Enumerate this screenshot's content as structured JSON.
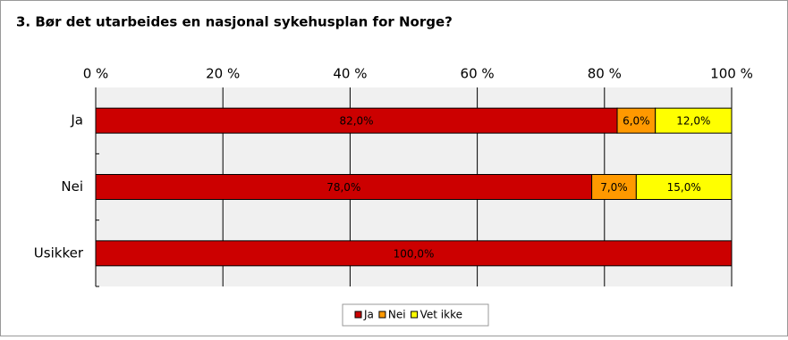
{
  "chart_data": {
    "type": "stacked-bar-horizontal",
    "title": "3. Bør det utarbeides en nasjonal sykehusplan for Norge?",
    "categories": [
      "Ja",
      "Nei",
      "Usikker"
    ],
    "series": [
      {
        "name": "Ja",
        "color": "#cc0000",
        "values": [
          82,
          78,
          100
        ],
        "value_labels": [
          "82,0%",
          "78,0%",
          "100,0%"
        ]
      },
      {
        "name": "Nei",
        "color": "#ff9900",
        "values": [
          6,
          7,
          null
        ],
        "value_labels": [
          "6,0%",
          "7,0%",
          null
        ]
      },
      {
        "name": "Vet ikke",
        "color": "#ffff00",
        "values": [
          12,
          15,
          null
        ],
        "value_labels": [
          "12,0%",
          "15,0%",
          null
        ]
      }
    ],
    "xlim": [
      0,
      100
    ],
    "xticks": [
      {
        "value": 0,
        "label": "0 %"
      },
      {
        "value": 20,
        "label": "20 %"
      },
      {
        "value": 40,
        "label": "40 %"
      },
      {
        "value": 60,
        "label": "60 %"
      },
      {
        "value": 80,
        "label": "80 %"
      },
      {
        "value": 100,
        "label": "100 %"
      }
    ],
    "grid": true,
    "legend": "bottom"
  }
}
